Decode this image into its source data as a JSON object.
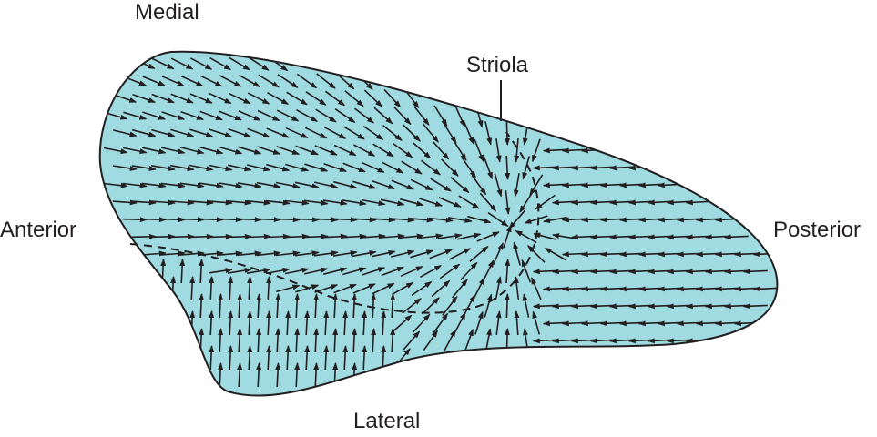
{
  "labels": {
    "medial": "Medial",
    "striola": "Striola",
    "anterior": "Anterior",
    "posterior": "Posterior",
    "lateral": "Lateral"
  },
  "colors": {
    "macula_fill": "#9fdbe0",
    "outline": "#231f20",
    "arrows": "#231f20",
    "background": "#ffffff"
  }
}
